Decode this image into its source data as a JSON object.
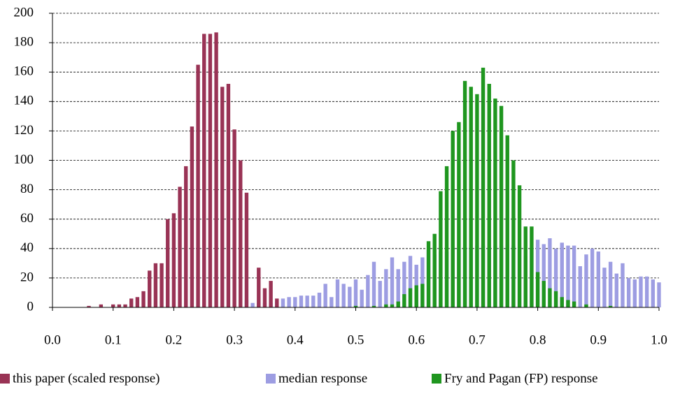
{
  "chart_data": {
    "type": "bar",
    "x": [
      0,
      0.01,
      0.02,
      0.03,
      0.04,
      0.05,
      0.06,
      0.07,
      0.08,
      0.09,
      0.1,
      0.11,
      0.12,
      0.13,
      0.14,
      0.15,
      0.16,
      0.17,
      0.18,
      0.19,
      0.2,
      0.21,
      0.22,
      0.23,
      0.24,
      0.25,
      0.26,
      0.27,
      0.28,
      0.29,
      0.3,
      0.31,
      0.32,
      0.33,
      0.34,
      0.35,
      0.36,
      0.37,
      0.38,
      0.39,
      0.4,
      0.41,
      0.42,
      0.43,
      0.44,
      0.45,
      0.46,
      0.47,
      0.48,
      0.49,
      0.5,
      0.51,
      0.52,
      0.53,
      0.54,
      0.55,
      0.56,
      0.57,
      0.58,
      0.59,
      0.6,
      0.61,
      0.62,
      0.63,
      0.64,
      0.65,
      0.66,
      0.67,
      0.68,
      0.69,
      0.7,
      0.71,
      0.72,
      0.73,
      0.74,
      0.75,
      0.76,
      0.77,
      0.78,
      0.79,
      0.8,
      0.81,
      0.82,
      0.83,
      0.84,
      0.85,
      0.86,
      0.87,
      0.88,
      0.89,
      0.9,
      0.91,
      0.92,
      0.93,
      0.94,
      0.95,
      0.96,
      0.97,
      0.98,
      0.99,
      1
    ],
    "series": [
      {
        "name": "median response",
        "color": "#9d9de2",
        "values": [
          0,
          0,
          0,
          0,
          0,
          0,
          0,
          0,
          0,
          0,
          0,
          0,
          0,
          0,
          0,
          0,
          0,
          0,
          0,
          0,
          0,
          0,
          0,
          0,
          0,
          0,
          0,
          0,
          0,
          0,
          0,
          0,
          5,
          3,
          3,
          3,
          3,
          4,
          6,
          7,
          7,
          8,
          8,
          8,
          10,
          16,
          7,
          19,
          16,
          14,
          19,
          12,
          22,
          31,
          18,
          26,
          34,
          26,
          31,
          35,
          29,
          34,
          39,
          36,
          38,
          38,
          40,
          40,
          41,
          40,
          42,
          42,
          41,
          42,
          42,
          43,
          42,
          41,
          35,
          40,
          46,
          43,
          47,
          40,
          44,
          42,
          42,
          28,
          36,
          40,
          38,
          27,
          31,
          23,
          30,
          20,
          19,
          21,
          21,
          19,
          17
        ]
      },
      {
        "name": "this paper (scaled response)",
        "color": "#993355",
        "values": [
          0,
          0,
          0,
          0,
          0,
          0,
          1,
          0,
          2,
          0,
          2,
          2,
          2,
          6,
          7,
          11,
          25,
          30,
          30,
          60,
          64,
          82,
          96,
          123,
          165,
          186,
          186,
          187,
          150,
          152,
          121,
          100,
          78,
          0,
          27,
          13,
          18,
          6,
          0,
          0,
          0,
          0,
          0,
          0,
          0,
          0,
          0,
          0,
          0,
          0,
          0,
          0,
          0,
          0,
          0,
          0,
          0,
          0,
          0,
          0,
          0,
          0,
          0,
          0,
          0,
          0,
          0,
          0,
          0,
          0,
          0,
          0,
          0,
          0,
          0,
          0,
          0,
          0,
          0,
          0,
          0,
          0,
          0,
          0,
          0,
          0,
          0,
          0,
          0,
          0,
          0,
          0,
          0,
          0,
          0,
          0,
          0,
          0,
          0,
          0,
          0
        ]
      },
      {
        "name": "Fry and Pagan (FP) response",
        "color": "#1f961f",
        "values": [
          0,
          0,
          0,
          0,
          0,
          0,
          0,
          0,
          0,
          0,
          0,
          0,
          0,
          0,
          0,
          0,
          0,
          0,
          0,
          0,
          0,
          0,
          0,
          0,
          0,
          0,
          0,
          0,
          0,
          0,
          0,
          0,
          0,
          0,
          0,
          0,
          0,
          0,
          0,
          0,
          0,
          0,
          0,
          0,
          0,
          0,
          0,
          0,
          0,
          0,
          1,
          0,
          0,
          1,
          0,
          2,
          2,
          4,
          9,
          13,
          15,
          16,
          45,
          50,
          79,
          96,
          120,
          126,
          154,
          150,
          145,
          163,
          152,
          142,
          137,
          117,
          100,
          83,
          55,
          55,
          24,
          18,
          13,
          11,
          7,
          5,
          4,
          0,
          2,
          0,
          0,
          0,
          1,
          0,
          0,
          0,
          0,
          0,
          0,
          0,
          0
        ]
      }
    ],
    "legend_order": [
      "this paper (scaled response)",
      "median response",
      "Fry and Pagan (FP) response"
    ],
    "xlim": [
      0,
      1
    ],
    "xticks": [
      {
        "value": 0,
        "label": "0.0"
      },
      0.1,
      0.2,
      0.3,
      0.4,
      0.5,
      0.6,
      0.7,
      0.8,
      0.9,
      {
        "value": 1,
        "label": "1.0"
      }
    ],
    "ylim": [
      0,
      200
    ],
    "yticks": [
      0,
      20,
      40,
      60,
      80,
      100,
      120,
      140,
      160,
      180,
      200
    ],
    "grid": true,
    "legend": "bottom"
  }
}
